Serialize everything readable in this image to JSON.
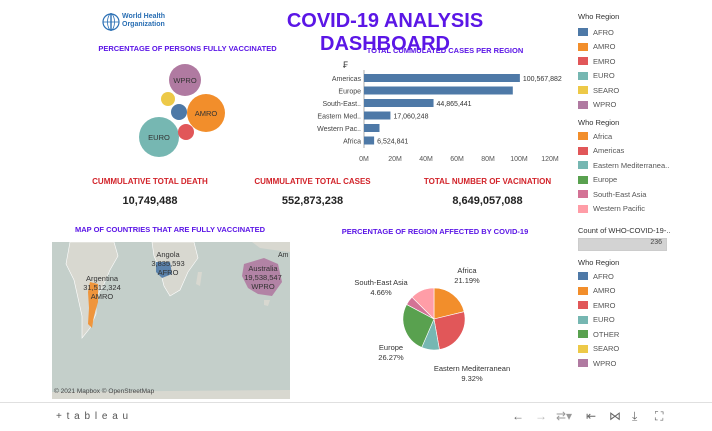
{
  "header": {
    "logo_text": "World Health Organization",
    "title": "COVID-19 ANALYSIS DASHBOARD"
  },
  "bubble": {
    "title": "PERCENTAGE OF PERSONS FULLY VACCINATED",
    "labels": {
      "wpro": "WPRO",
      "amro": "AMRO",
      "euro": "EURO"
    }
  },
  "bars": {
    "title": "TOTAL CUMMULATED CASES PER REGION",
    "filter_glyph": "₣"
  },
  "kpi": {
    "death_label": "CUMMULATIVE TOTAL DEATH",
    "death_value": "10,749,488",
    "cases_label": "CUMMULATIVE TOTAL CASES",
    "cases_value": "552,873,238",
    "vacc_label": "TOTAL NUMBER OF VACINATION",
    "vacc_value": "8,649,057,088"
  },
  "map": {
    "title": "MAP OF COUNTRIES THAT ARE FULLY VACCINATED",
    "argentina_name": "Argentina",
    "argentina_value": "31,512,324",
    "argentina_region": "AMRO",
    "angola_name": "Angola",
    "angola_value": "3,835,593",
    "angola_region": "AFRO",
    "australia_name": "Australia",
    "australia_value": "19,538,547",
    "australia_region": "WPRO",
    "edge_text": "Am",
    "attribution": "© 2021 Mapbox  © OpenStreetMap"
  },
  "pie": {
    "title": "PERCENTAGE OF REGION AFFECTED BY COVID-19",
    "labels": {
      "africa_name": "Africa",
      "africa_pct": "21.19%",
      "sea_name": "South-East Asia",
      "sea_pct": "4.66%",
      "europe_name": "Europe",
      "europe_pct": "26.27%",
      "emed_name": "Eastern Mediterranean",
      "emed_pct": "9.32%"
    }
  },
  "legend1": {
    "title": "Who Region",
    "items": [
      {
        "label": "AFRO",
        "color": "#4e79a7"
      },
      {
        "label": "AMRO",
        "color": "#f28e2b"
      },
      {
        "label": "EMRO",
        "color": "#e15759"
      },
      {
        "label": "EURO",
        "color": "#76b7b2"
      },
      {
        "label": "SEARO",
        "color": "#edc948"
      },
      {
        "label": "WPRO",
        "color": "#b07aa1"
      }
    ]
  },
  "legend2": {
    "title": "Who Region",
    "items": [
      {
        "label": "Africa",
        "color": "#f28e2b"
      },
      {
        "label": "Americas",
        "color": "#e15759"
      },
      {
        "label": "Eastern Mediterranea..",
        "color": "#76b7b2"
      },
      {
        "label": "Europe",
        "color": "#59a14f"
      },
      {
        "label": "South-East Asia",
        "color": "#d37295"
      },
      {
        "label": "Western Pacific",
        "color": "#ff9da7"
      }
    ]
  },
  "count": {
    "title": "Count of WHO-COVID-19-..",
    "value": "236",
    "fill": 1.0
  },
  "legend3": {
    "title": "Who Region",
    "items": [
      {
        "label": "AFRO",
        "color": "#4e79a7"
      },
      {
        "label": "AMRO",
        "color": "#f28e2b"
      },
      {
        "label": "EMRO",
        "color": "#e15759"
      },
      {
        "label": "EURO",
        "color": "#76b7b2"
      },
      {
        "label": "OTHER",
        "color": "#59a14f"
      },
      {
        "label": "SEARO",
        "color": "#edc948"
      },
      {
        "label": "WPRO",
        "color": "#b07aa1"
      }
    ]
  },
  "footer": {
    "brand": "+ t a b l e a u"
  },
  "chart_data": [
    {
      "type": "bar",
      "orientation": "horizontal",
      "title": "TOTAL CUMMULATED CASES PER REGION",
      "categories": [
        "Americas",
        "Europe",
        "South-East..",
        "Eastern Med..",
        "Western Pac..",
        "Africa"
      ],
      "values": [
        100567882,
        96000000,
        44865441,
        17060248,
        10000000,
        6524841
      ],
      "data_labels": [
        "100,567,882",
        "",
        "44,865,441",
        "17,060,248",
        "",
        "6,524,841"
      ],
      "xlim": [
        0,
        120000000
      ],
      "xticks": [
        0,
        20000000,
        40000000,
        60000000,
        80000000,
        100000000,
        120000000
      ],
      "xtick_labels": [
        "0M",
        "20M",
        "40M",
        "60M",
        "80M",
        "100M",
        "120M"
      ],
      "color": "#4e79a7"
    },
    {
      "type": "pie",
      "title": "PERCENTAGE OF REGION AFFECTED BY COVID-19",
      "slices": [
        {
          "label": "Africa",
          "value": 21.19,
          "color": "#f28e2b"
        },
        {
          "label": "Americas",
          "value": 26.0,
          "color": "#e15759"
        },
        {
          "label": "Eastern Mediterranean",
          "value": 9.32,
          "color": "#76b7b2"
        },
        {
          "label": "Europe",
          "value": 26.27,
          "color": "#59a14f"
        },
        {
          "label": "South-East Asia",
          "value": 4.66,
          "color": "#d37295"
        },
        {
          "label": "Western Pacific",
          "value": 12.56,
          "color": "#ff9da7"
        }
      ]
    },
    {
      "type": "scatter",
      "subtype": "packed-bubble",
      "title": "PERCENTAGE OF PERSONS FULLY VACCINATED",
      "bubbles": [
        {
          "label": "EURO",
          "size": 35,
          "color": "#76b7b2"
        },
        {
          "label": "AMRO",
          "size": 22,
          "color": "#f28e2b"
        },
        {
          "label": "WPRO",
          "size": 20,
          "color": "#b07aa1"
        },
        {
          "label": "AFRO",
          "size": 8,
          "color": "#4e79a7"
        },
        {
          "label": "EMRO",
          "size": 7,
          "color": "#e15759"
        },
        {
          "label": "SEARO",
          "size": 6,
          "color": "#edc948"
        }
      ]
    }
  ]
}
